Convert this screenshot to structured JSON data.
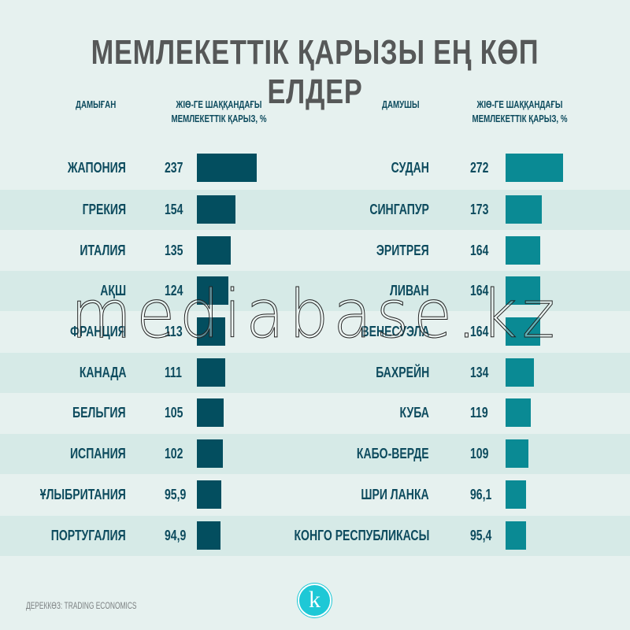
{
  "title": "МЕМЛЕКЕТТІК ҚАРЫЗЫ ЕҢ КӨП ЕЛДЕР",
  "source": "ДЕРЕККӨЗ: TRADING ECONOMICS",
  "logo_letter": "k",
  "watermark": "mediabase.kz",
  "colors": {
    "background": "#e6f1ef",
    "stripe": "#d6eae7",
    "developed_bar": "#034e5f",
    "developing_bar": "#0a8a94",
    "text": "#0d4b5e"
  },
  "chart_data": [
    {
      "type": "bar",
      "orientation": "horizontal",
      "category_header": "ДАМЫҒАН",
      "value_header": "ЖІӨ-ГЕ ШАҚҚАНДАҒЫ МЕМЛЕКЕТТІК ҚАРЫЗ, %",
      "categories": [
        "ЖАПОНИЯ",
        "ГРЕКИЯ",
        "ИТАЛИЯ",
        "АҚШ",
        "ФРАНЦИЯ",
        "КАНАДА",
        "БЕЛЬГИЯ",
        "ИСПАНИЯ",
        "ҰЛЫБРИТАНИЯ",
        "ПОРТУГАЛИЯ"
      ],
      "values": [
        237,
        154,
        135,
        124,
        113,
        111,
        105,
        102,
        95.9,
        94.9
      ],
      "labels": [
        "237",
        "154",
        "135",
        "124",
        "113",
        "111",
        "105",
        "102",
        "95,9",
        "94,9"
      ],
      "color": "#034e5f"
    },
    {
      "type": "bar",
      "orientation": "horizontal",
      "category_header": "ДАМУШЫ",
      "value_header": "ЖІӨ-ГЕ ШАҚҚАНДАҒЫ МЕМЛЕКЕТТІК ҚАРЫЗ, %",
      "categories": [
        "СУДАН",
        "СИНГАПУР",
        "ЭРИТРЕЯ",
        "ЛИВАН",
        "ВЕНЕСУЭЛА",
        "БАХРЕЙН",
        "КУБА",
        "КАБО-ВЕРДЕ",
        "ШРИ ЛАНКА",
        "КОНГО РЕСПУБЛИКАСЫ"
      ],
      "values": [
        272,
        173,
        164,
        164,
        164,
        134,
        119,
        109,
        96.1,
        95.4
      ],
      "labels": [
        "272",
        "173",
        "164",
        "164",
        "164",
        "134",
        "119",
        "109",
        "96,1",
        "95,4"
      ],
      "color": "#0a8a94"
    }
  ]
}
